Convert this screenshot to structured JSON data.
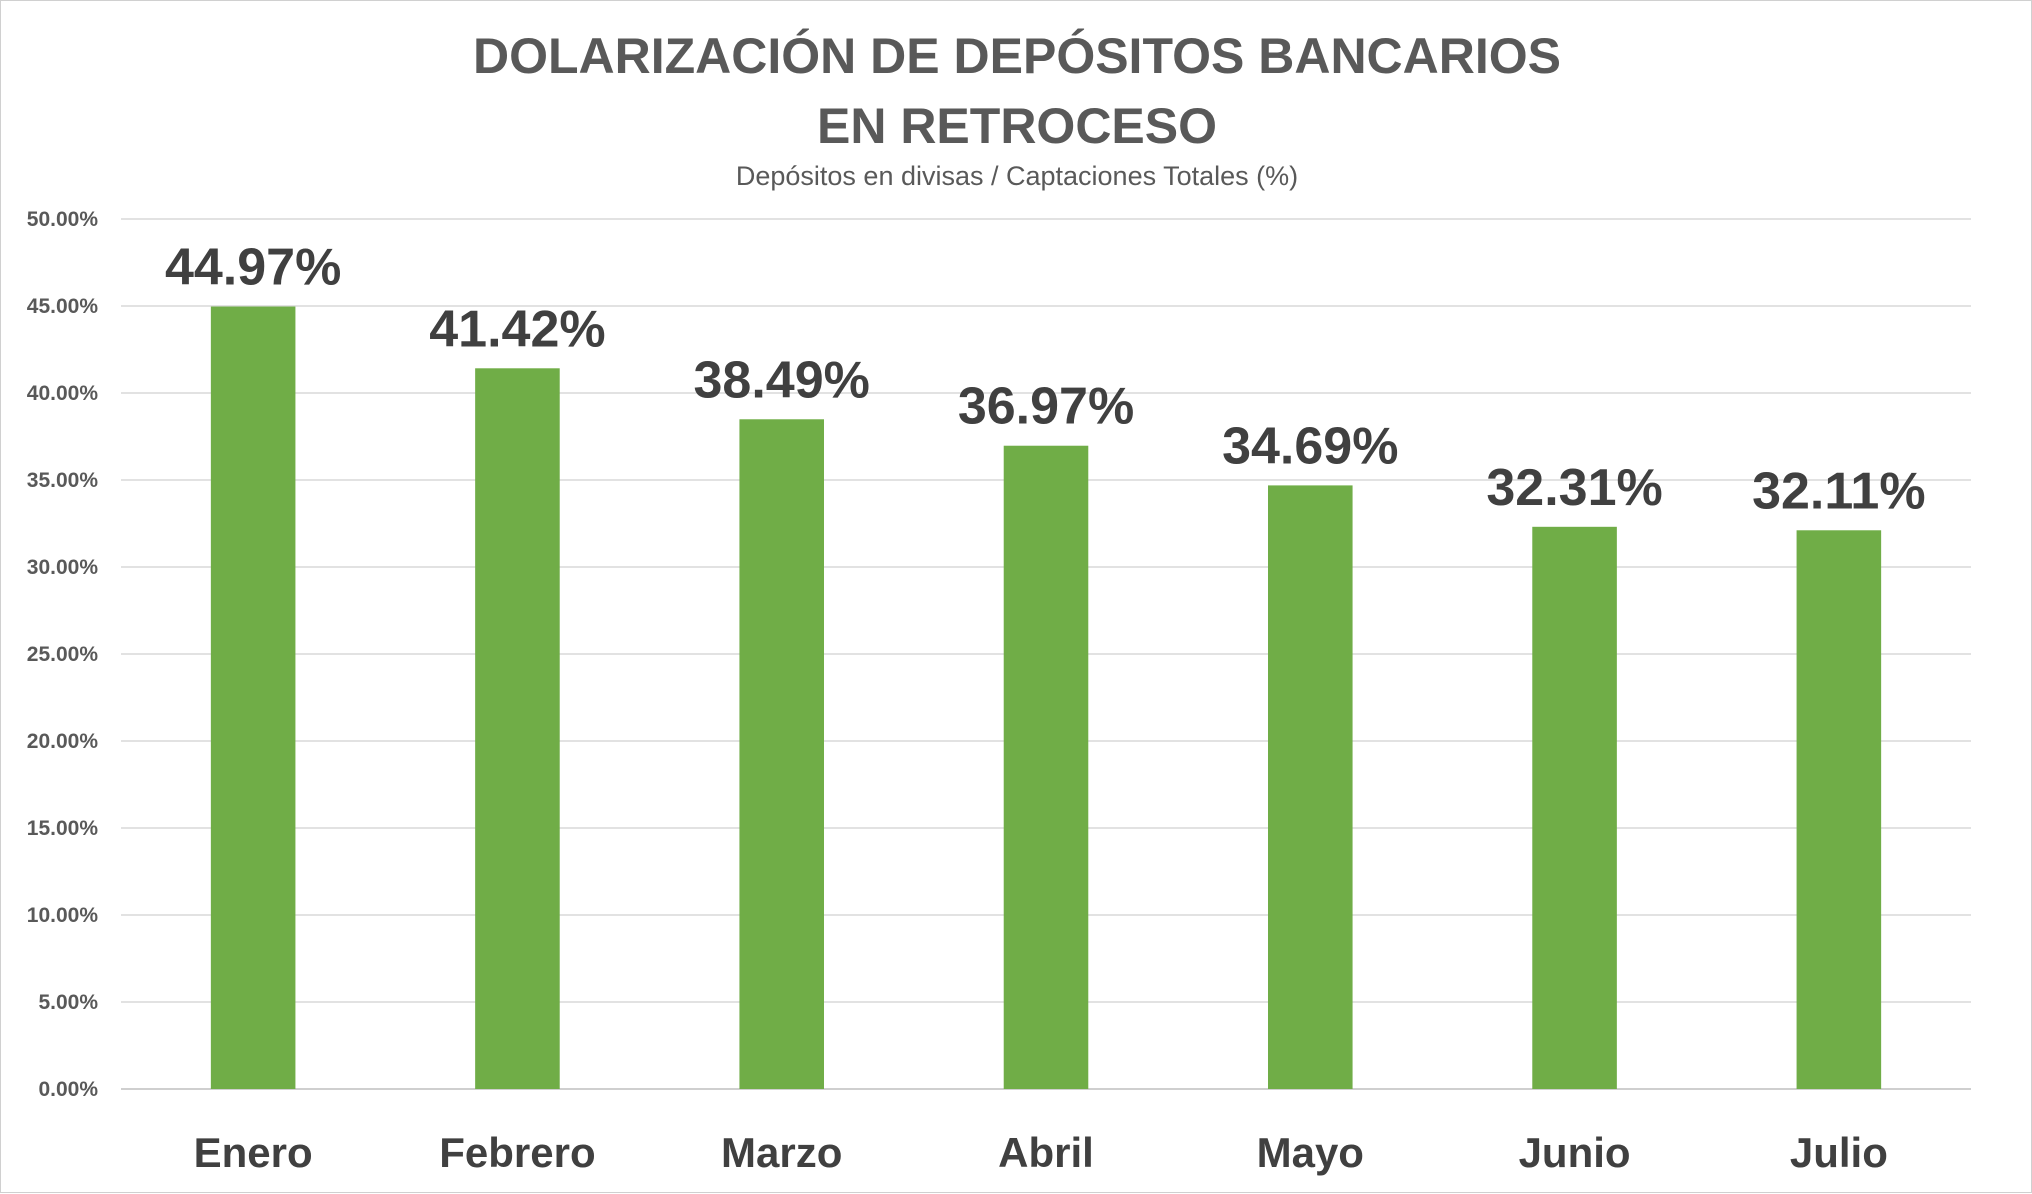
{
  "chart_data": {
    "type": "bar",
    "title_lines": [
      "DOLARIZACIÓN DE DEPÓSITOS BANCARIOS",
      "EN RETROCESO"
    ],
    "subtitle": "Depósitos en divisas / Captaciones Totales (%)",
    "xlabel": "",
    "ylabel": "",
    "categories": [
      "Enero",
      "Febrero",
      "Marzo",
      "Abril",
      "Mayo",
      "Junio",
      "Julio"
    ],
    "values": [
      44.97,
      41.42,
      38.49,
      36.97,
      34.69,
      32.31,
      32.11
    ],
    "data_labels": [
      "44.97%",
      "41.42%",
      "38.49%",
      "36.97%",
      "34.69%",
      "32.31%",
      "32.11%"
    ],
    "ylim": [
      0,
      50
    ],
    "yticks": [
      0,
      5,
      10,
      15,
      20,
      25,
      30,
      35,
      40,
      45,
      50
    ],
    "ytick_labels": [
      "0.00%",
      "5.00%",
      "10.00%",
      "15.00%",
      "20.00%",
      "25.00%",
      "30.00%",
      "35.00%",
      "40.00%",
      "45.00%",
      "50.00%"
    ],
    "grid": true,
    "legend": "none",
    "bar_color": "#70ad47"
  }
}
